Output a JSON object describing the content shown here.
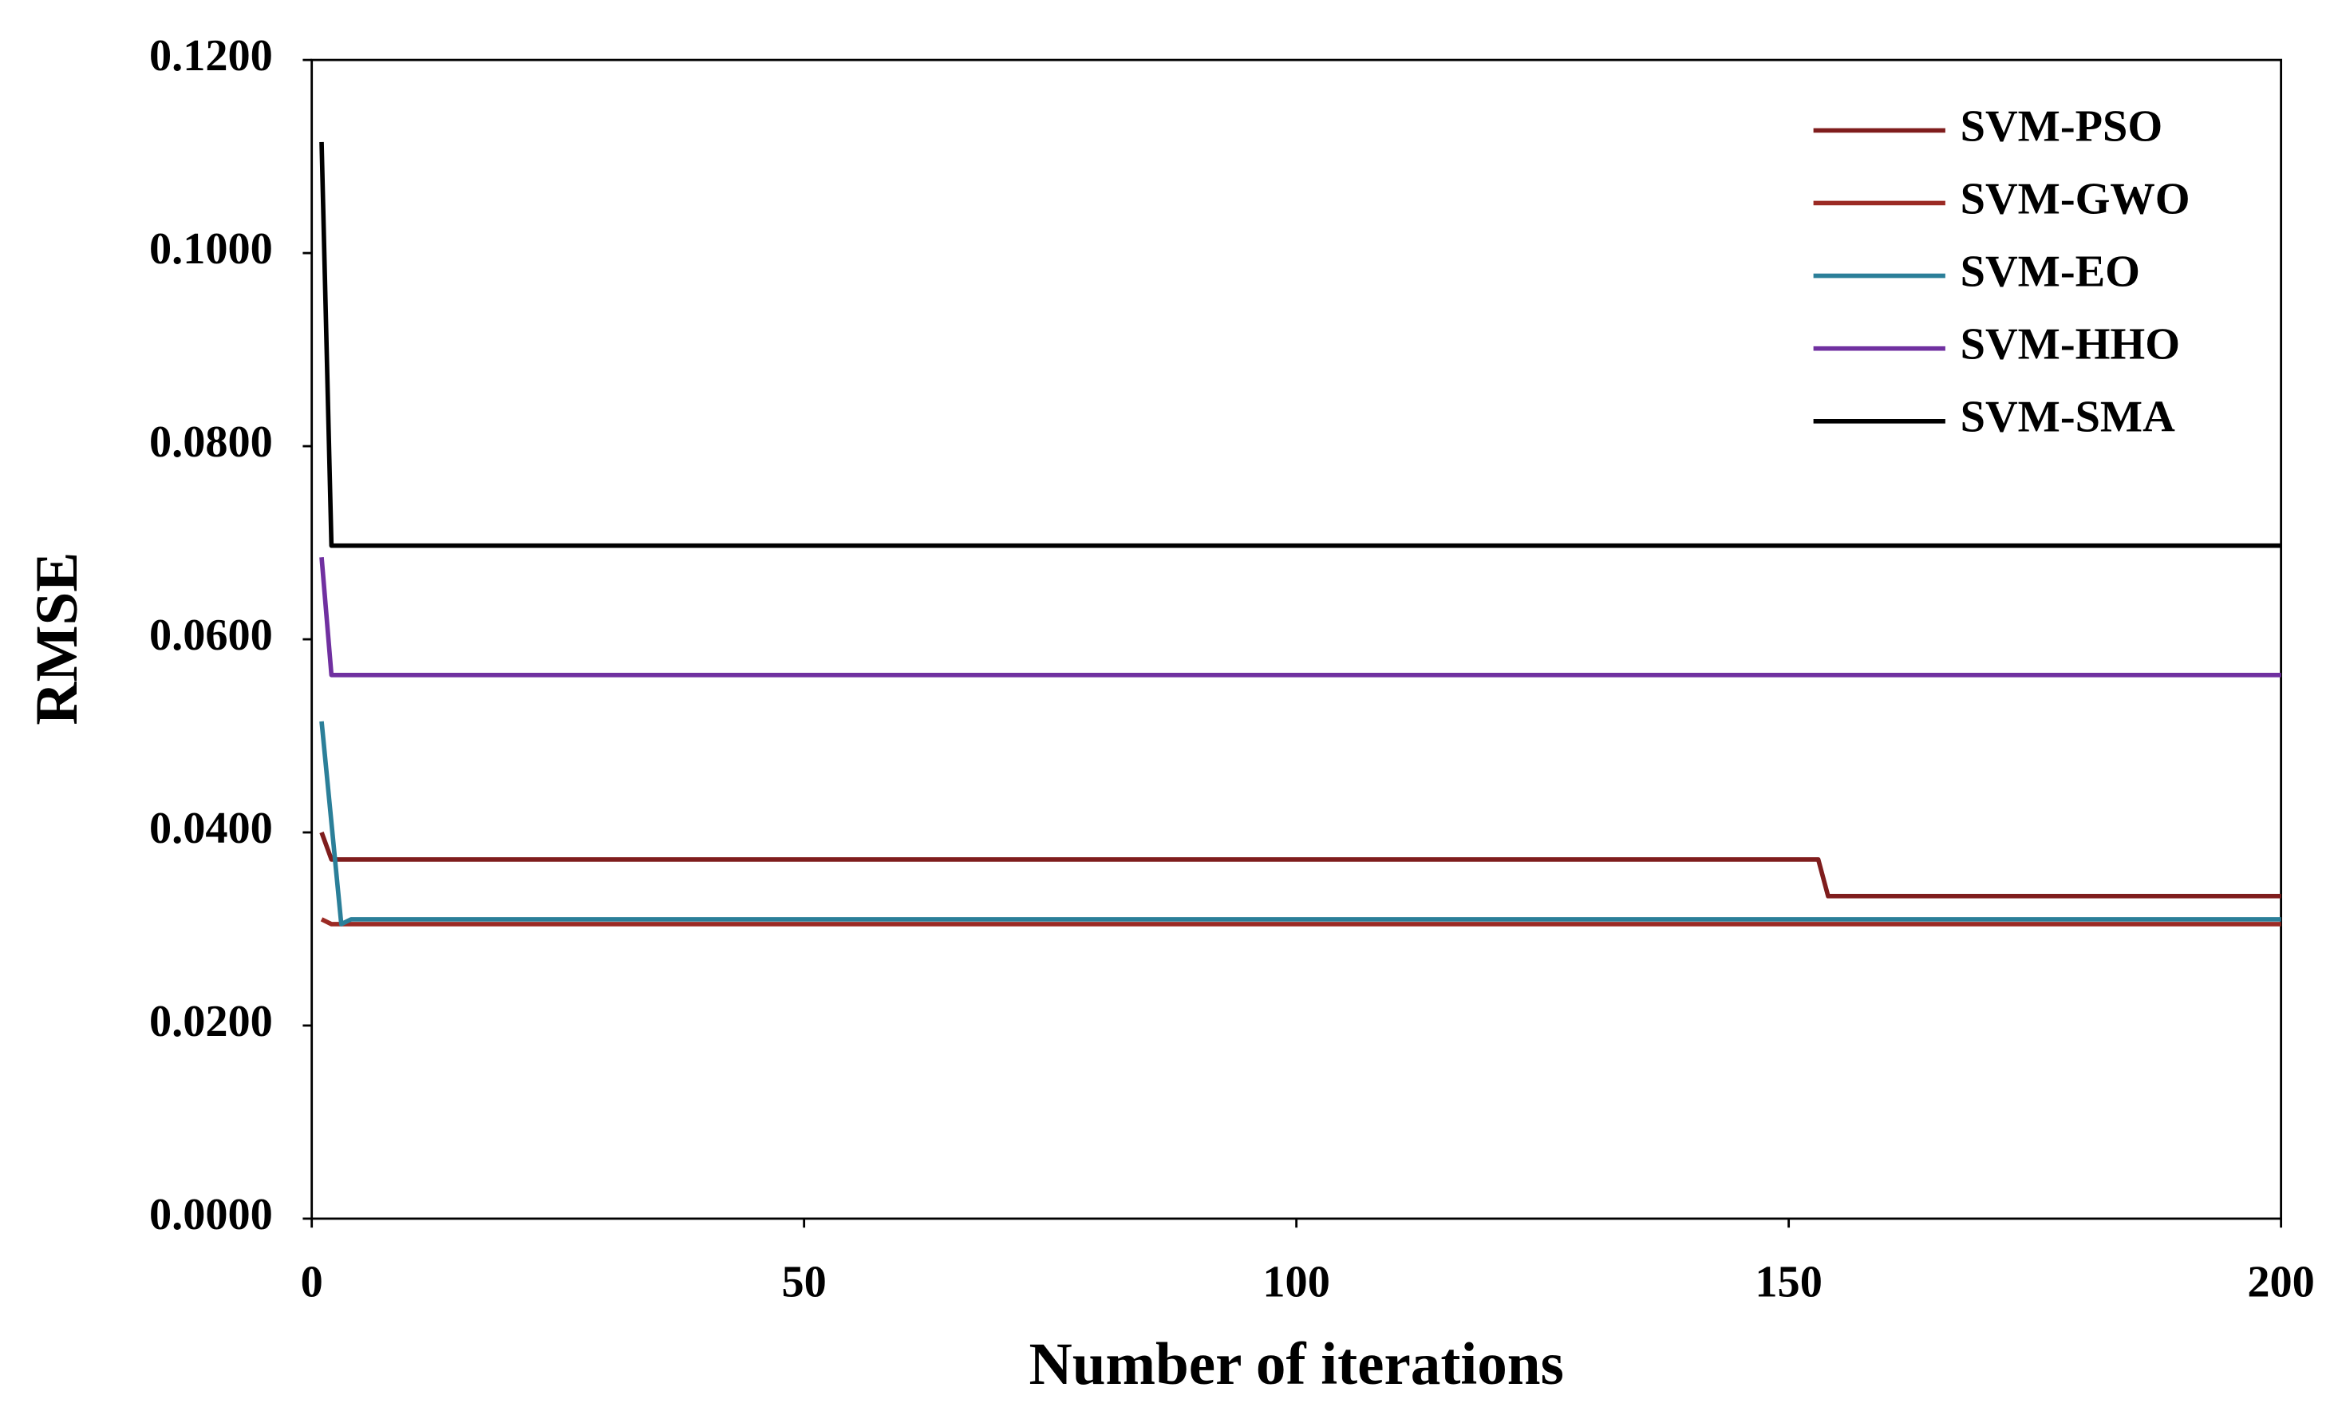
{
  "chart_data": {
    "type": "line",
    "x_label": "Number  of iterations",
    "y_label": "RMSE",
    "xlim": [
      0,
      200
    ],
    "xticks": [
      0,
      50,
      100,
      150,
      200
    ],
    "ylim": [
      0,
      0.12
    ],
    "yticks": [
      {
        "value": 0,
        "label": "0.0000"
      },
      {
        "value": 0.02,
        "label": "0.0200"
      },
      {
        "value": 0.04,
        "label": "0.0400"
      },
      {
        "value": 0.06,
        "label": "0.0600"
      },
      {
        "value": 0.08,
        "label": "0.0800"
      },
      {
        "value": 0.1,
        "label": "0.1000"
      },
      {
        "value": 0.12,
        "label": "0.1200"
      }
    ],
    "grid": false,
    "legend": "upper right",
    "series": [
      {
        "name": "SVM-PSO",
        "color": "#7f1d1d",
        "x": [
          1,
          2,
          153,
          154,
          200
        ],
        "values": [
          0.04,
          0.0372,
          0.0372,
          0.0334,
          0.0334
        ]
      },
      {
        "name": "SVM-GWO",
        "color": "#9b2a24",
        "x": [
          1,
          2,
          200
        ],
        "values": [
          0.031,
          0.0305,
          0.0305
        ]
      },
      {
        "name": "SVM-EO",
        "color": "#2b7f99",
        "x": [
          1,
          3,
          4,
          200
        ],
        "values": [
          0.0515,
          0.0305,
          0.031,
          0.031
        ]
      },
      {
        "name": "SVM-HHO",
        "color": "#7030a0",
        "x": [
          1,
          2,
          200
        ],
        "values": [
          0.0685,
          0.0563,
          0.0563
        ]
      },
      {
        "name": "SVM-SMA",
        "color": "#000000",
        "x": [
          1,
          2,
          200
        ],
        "values": [
          0.1115,
          0.0697,
          0.0697
        ]
      }
    ]
  }
}
